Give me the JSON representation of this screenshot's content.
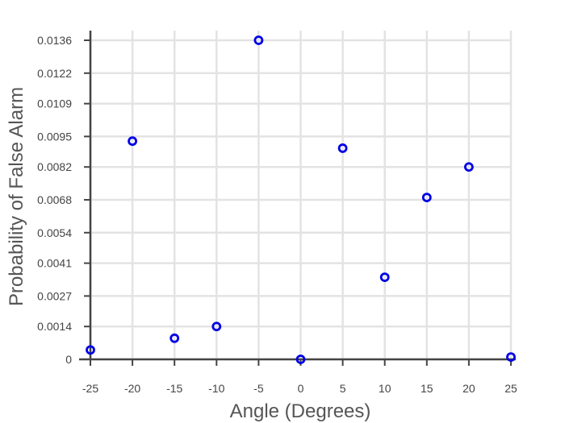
{
  "chart_data": {
    "type": "scatter",
    "title": "",
    "xlabel": "Angle (Degrees)",
    "ylabel": "Probability of False Alarm",
    "xlim": [
      -25,
      25
    ],
    "ylim": [
      0,
      0.0136
    ],
    "grid": true,
    "xticks": [
      -25,
      -20,
      -15,
      -10,
      -5,
      0,
      5,
      10,
      15,
      20,
      25
    ],
    "xtick_labels": [
      "-25",
      "-20",
      "-15",
      "-10",
      "-5",
      "0",
      "5",
      "10",
      "15",
      "20",
      "25"
    ],
    "yticks": [
      0,
      0.0014,
      0.0027,
      0.0041,
      0.0054,
      0.0068,
      0.0082,
      0.0095,
      0.0109,
      0.0122,
      0.0136
    ],
    "ytick_labels": [
      "0",
      "0.0014",
      "0.0027",
      "0.0041",
      "0.0054",
      "0.0068",
      "0.0082",
      "0.0095",
      "0.0109",
      "0.0122",
      "0.0136"
    ],
    "marker_color": "#0000e6",
    "series": [
      {
        "name": "Probability of False Alarm",
        "x": [
          -25,
          -20,
          -15,
          -10,
          -5,
          0,
          5,
          10,
          15,
          20,
          25
        ],
        "y": [
          0.0004,
          0.0093,
          0.0009,
          0.0014,
          0.0136,
          0.0,
          0.009,
          0.0035,
          0.0069,
          0.0082,
          0.0001
        ]
      }
    ]
  }
}
